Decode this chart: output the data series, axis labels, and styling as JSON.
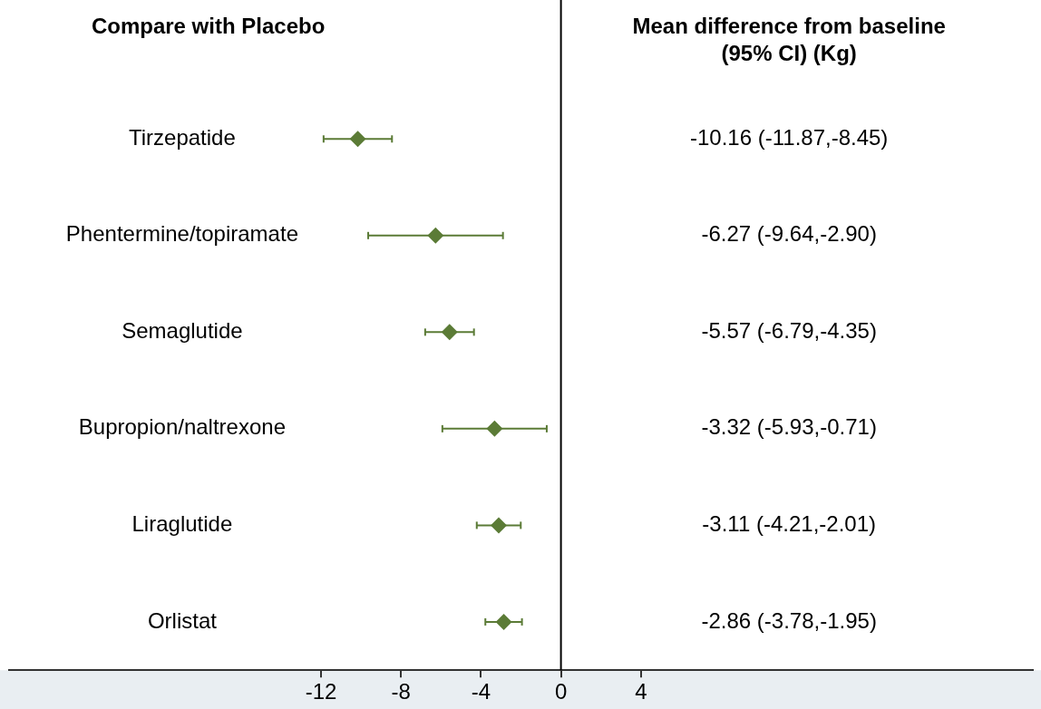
{
  "chart_data": {
    "type": "scatter",
    "categories": [
      "Tirzepatide",
      "Phentermine/topiramate",
      "Semaglutide",
      "Bupropion/naltrexone",
      "Liraglutide",
      "Orlistat"
    ],
    "values": [
      -10.16,
      -6.27,
      -5.57,
      -3.32,
      -3.11,
      -2.86
    ],
    "errors": [
      [
        -11.87,
        -8.45
      ],
      [
        -9.64,
        -2.9
      ],
      [
        -6.79,
        -4.35
      ],
      [
        -5.93,
        -0.71
      ],
      [
        -4.21,
        -2.01
      ],
      [
        -3.78,
        -1.95
      ]
    ],
    "color": "#5b7b36",
    "marker": "diamond",
    "orientation": "horizontal",
    "xlim": [
      -27.6,
      23.6
    ],
    "xticks": [
      -12,
      -8,
      -4,
      0,
      4
    ],
    "ref_lines": [
      {
        "axis": "x",
        "value": 0,
        "label": null,
        "color": "#000000"
      }
    ],
    "annotations": [
      "Compare with Placebo",
      "Mean difference from baseline\n(95% CI) (Kg)",
      "-10.16 (-11.87,-8.45)",
      "-6.27 (-9.64,-2.90)",
      "-5.57 (-6.79,-4.35)",
      "-3.32 (-5.93,-0.71)",
      "-3.11 (-4.21,-2.01)",
      "-2.86 (-3.78,-1.95)"
    ],
    "grid": false,
    "legend": false
  }
}
